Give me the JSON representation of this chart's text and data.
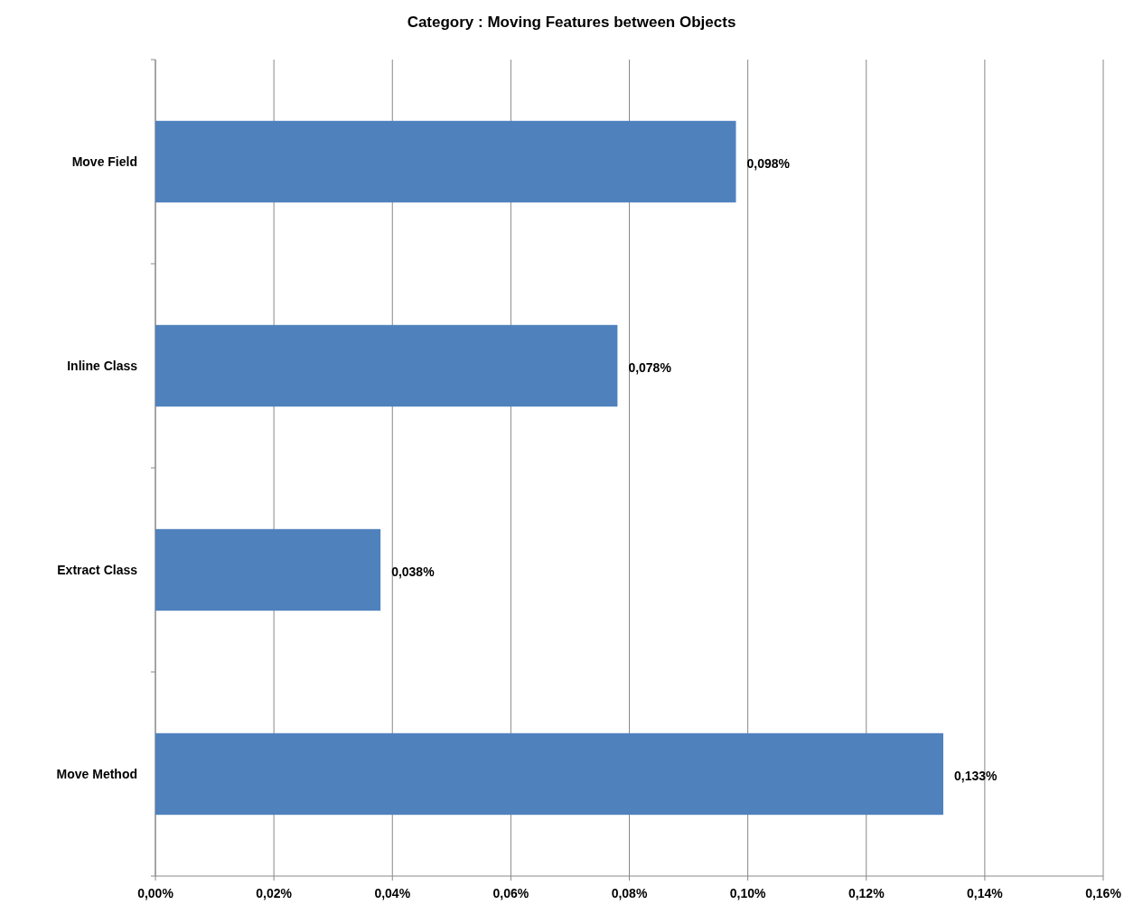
{
  "chart_data": {
    "type": "bar",
    "orientation": "horizontal",
    "title": "Category : Moving Features between Objects",
    "categories": [
      "Move Field",
      "Inline Class",
      "Extract Class",
      "Move Method"
    ],
    "values": [
      0.098,
      0.078,
      0.038,
      0.133
    ],
    "value_labels": [
      "0,098%",
      "0,078%",
      "0,038%",
      "0,133%"
    ],
    "color": "#4f81bd",
    "xlim": [
      0,
      0.16
    ],
    "xticks": [
      {
        "value": 0,
        "label": "0,00%"
      },
      {
        "value": 0.02,
        "label": "0,02%"
      },
      {
        "value": 0.04,
        "label": "0,04%"
      },
      {
        "value": 0.06,
        "label": "0,06%"
      },
      {
        "value": 0.08,
        "label": "0,08%"
      },
      {
        "value": 0.1,
        "label": "0,10%"
      },
      {
        "value": 0.12,
        "label": "0,12%"
      },
      {
        "value": 0.14,
        "label": "0,14%"
      },
      {
        "value": 0.16,
        "label": "0,16%"
      }
    ],
    "grid": "x"
  }
}
